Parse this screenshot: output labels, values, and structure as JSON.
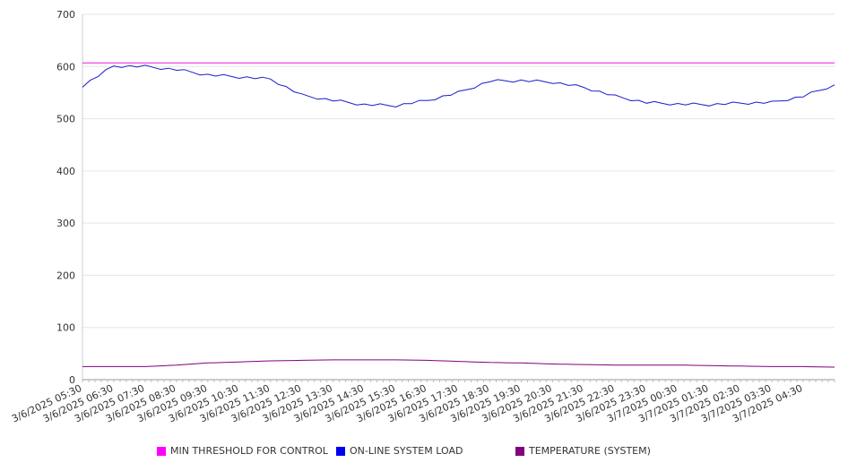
{
  "chart_data": {
    "type": "line",
    "title": "",
    "xlabel": "",
    "ylabel": "",
    "ylim": [
      0,
      700
    ],
    "y_ticks": [
      0,
      100,
      200,
      300,
      400,
      500,
      600,
      700
    ],
    "x_tick_labels": [
      "3/6/2025 05:30",
      "3/6/2025 06:30",
      "3/6/2025 07:30",
      "3/6/2025 08:30",
      "3/6/2025 09:30",
      "3/6/2025 10:30",
      "3/6/2025 11:30",
      "3/6/2025 12:30",
      "3/6/2025 13:30",
      "3/6/2025 14:30",
      "3/6/2025 15:30",
      "3/6/2025 16:30",
      "3/6/2025 17:30",
      "3/6/2025 18:30",
      "3/6/2025 19:30",
      "3/6/2025 20:30",
      "3/6/2025 21:30",
      "3/6/2025 22:30",
      "3/6/2025 23:30",
      "3/7/2025 00:30",
      "3/7/2025 01:30",
      "3/7/2025 02:30",
      "3/7/2025 03:30",
      "3/7/2025 04:30"
    ],
    "x_hours": [
      0,
      1,
      2,
      3,
      4,
      5,
      6,
      7,
      8,
      9,
      10,
      11,
      12,
      13,
      14,
      15,
      16,
      17,
      18,
      19,
      20,
      21,
      22,
      23,
      24
    ],
    "grid": "horizontal",
    "legend_position": "bottom",
    "series": [
      {
        "name": "MIN THRESHOLD FOR CONTROL",
        "color": "#e619e6",
        "swatch": "#ff00ff",
        "values": [
          607,
          607,
          607,
          607,
          607,
          607,
          607,
          607,
          607,
          607,
          607,
          607,
          607,
          607,
          607,
          607,
          607,
          607,
          607,
          607,
          607,
          607,
          607,
          607,
          607
        ]
      },
      {
        "name": "ON-LINE SYSTEM LOAD",
        "color": "#1a1acc",
        "swatch": "#0000ee",
        "values": [
          563,
          601,
          600,
          594,
          584,
          580,
          576,
          545,
          535,
          527,
          525,
          535,
          550,
          572,
          573,
          570,
          560,
          543,
          531,
          528,
          527,
          530,
          531,
          543,
          565
        ]
      },
      {
        "name": "TEMPERATURE (SYSTEM)",
        "color": "#800080",
        "swatch": "#800080",
        "values": [
          25,
          25,
          25,
          28,
          32,
          34,
          36,
          37,
          38,
          38,
          38,
          37,
          35,
          33,
          32,
          30,
          29,
          28,
          28,
          28,
          27,
          26,
          25,
          25,
          24
        ]
      }
    ]
  }
}
